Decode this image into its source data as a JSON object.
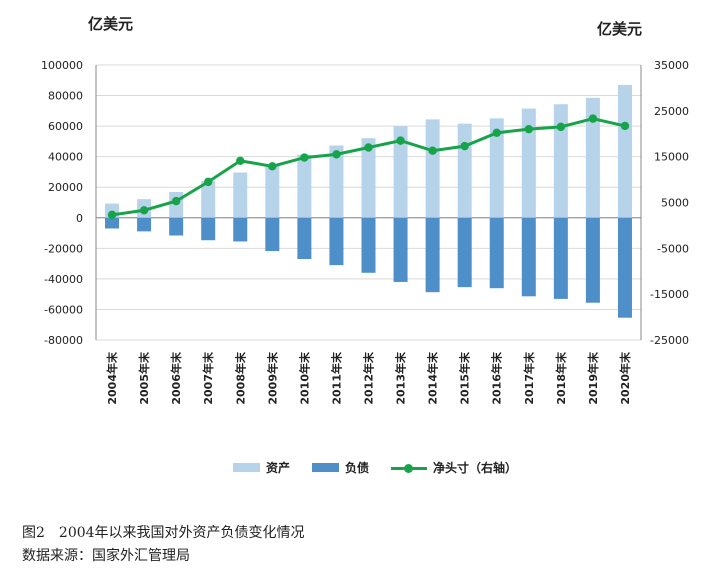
{
  "chart_data": {
    "type": "bar+line",
    "y_left_unit": "亿美元",
    "y_right_unit": "亿美元",
    "ylim_left": [
      -80000,
      100000
    ],
    "ylim_right": [
      -25000,
      35000
    ],
    "yticks_left": [
      "100000",
      "80000",
      "60000",
      "40000",
      "20000",
      "0",
      "-20000",
      "-40000",
      "-60000",
      "-80000"
    ],
    "yticks_right": [
      "35000",
      "25000",
      "15000",
      "5000",
      "-5000",
      "-15000",
      "-25000"
    ],
    "categories": [
      "2004年末",
      "2005年末",
      "2006年末",
      "2007年末",
      "2008年末",
      "2009年末",
      "2010年末",
      "2011年末",
      "2012年末",
      "2013年末",
      "2014年末",
      "2015年末",
      "2016年末",
      "2017年末",
      "2018年末",
      "2019年末",
      "2020年末"
    ],
    "series": [
      {
        "name": "资产",
        "axis": "left",
        "type": "bar",
        "color": "#b7d3ea",
        "values": [
          9300,
          12200,
          16900,
          24200,
          29600,
          34400,
          41300,
          47300,
          52100,
          59900,
          64400,
          61600,
          65100,
          71500,
          74300,
          78500,
          87000
        ]
      },
      {
        "name": "负债",
        "axis": "left",
        "type": "bar",
        "color": "#4e8fca",
        "values": [
          -7000,
          -8900,
          -11600,
          -14700,
          -15500,
          -21800,
          -27000,
          -31000,
          -36000,
          -42000,
          -48700,
          -45400,
          -46100,
          -51400,
          -53100,
          -55600,
          -65400
        ]
      },
      {
        "name": "净头寸（右轴）",
        "axis": "right",
        "type": "line",
        "color": "#17a34a",
        "values": [
          2300,
          3300,
          5300,
          9500,
          14100,
          12900,
          14800,
          15500,
          17000,
          18500,
          16300,
          17300,
          20200,
          21000,
          21500,
          23300,
          21700
        ]
      }
    ]
  },
  "caption": {
    "line1": "图2　2004年以来我国对外资产负债变化情况",
    "line2": "数据来源：国家外汇管理局"
  }
}
